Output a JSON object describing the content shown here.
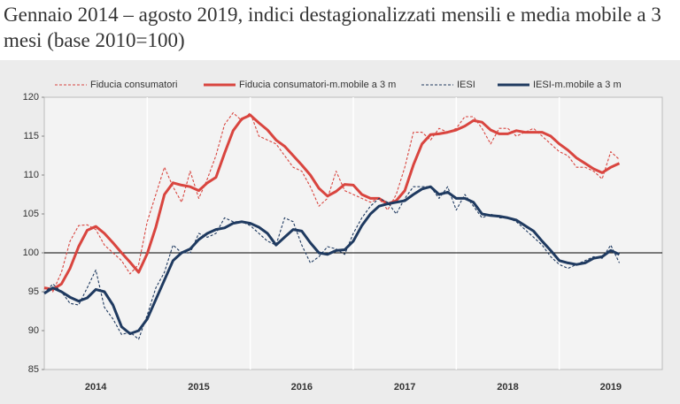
{
  "chart_data": {
    "type": "line",
    "title": "Gennaio 2014 – agosto 2019, indici destagionalizzati mensili e media mobile a 3 mesi (base 2010=100)",
    "categories": [
      null,
      null,
      null,
      null,
      null,
      null,
      "2014",
      null,
      null,
      null,
      null,
      null,
      null,
      null,
      null,
      null,
      null,
      null,
      "2015",
      null,
      null,
      null,
      null,
      null,
      null,
      null,
      null,
      null,
      null,
      null,
      "2016",
      null,
      null,
      null,
      null,
      null,
      null,
      null,
      null,
      null,
      null,
      null,
      "2017",
      null,
      null,
      null,
      null,
      null,
      null,
      null,
      null,
      null,
      null,
      null,
      "2018",
      null,
      null,
      null,
      null,
      null,
      null,
      null,
      null,
      null,
      null,
      null,
      "2019",
      null
    ],
    "series": [
      {
        "name": "Fiducia consumatori",
        "color": "#d9453f",
        "dashed": true,
        "values": [
          95.5,
          95.0,
          97.5,
          101.5,
          103.5,
          103.6,
          103.0,
          101.0,
          100.0,
          99.0,
          97.3,
          98.5,
          104.0,
          107.5,
          111.0,
          108.5,
          106.5,
          110.5,
          107.0,
          109.5,
          112.5,
          116.5,
          118.0,
          117.0,
          118.0,
          115.0,
          114.5,
          114.0,
          112.5,
          111.0,
          110.5,
          108.5,
          106.0,
          107.0,
          110.5,
          108.0,
          107.5,
          107.0,
          106.5,
          107.0,
          105.5,
          107.5,
          111.0,
          115.5,
          115.5,
          114.5,
          116.0,
          115.5,
          116.0,
          117.5,
          117.5,
          116.0,
          114.0,
          116.0,
          116.0,
          115.0,
          115.5,
          116.0,
          115.0,
          114.0,
          113.0,
          112.5,
          111.0,
          111.0,
          110.5,
          109.5,
          113.0,
          112.0
        ]
      },
      {
        "name": "Fiducia consumatori-m.mobile a 3 m",
        "color": "#d9453f",
        "dashed": false,
        "values": [
          95.5,
          95.3,
          96.0,
          98.0,
          100.8,
          102.9,
          103.4,
          102.5,
          101.3,
          100.0,
          98.8,
          97.5,
          99.9,
          103.3,
          107.5,
          109.0,
          108.7,
          108.5,
          108.0,
          109.0,
          109.7,
          112.8,
          115.7,
          117.2,
          117.7,
          116.7,
          115.8,
          114.5,
          113.7,
          112.5,
          111.3,
          110.0,
          108.3,
          107.3,
          107.9,
          108.8,
          108.7,
          107.5,
          107.0,
          107.0,
          106.3,
          106.7,
          108.0,
          111.3,
          114.0,
          115.2,
          115.3,
          115.5,
          115.8,
          116.3,
          117.0,
          116.8,
          115.8,
          115.3,
          115.3,
          115.7,
          115.5,
          115.5,
          115.5,
          115.0,
          114.0,
          113.2,
          112.2,
          111.5,
          110.8,
          110.3,
          111.0,
          111.5
        ]
      },
      {
        "name": "IESI",
        "color": "#1f3a60",
        "dashed": true,
        "values": [
          94.8,
          96.0,
          95.0,
          93.5,
          93.3,
          95.5,
          97.8,
          93.0,
          91.5,
          89.5,
          89.8,
          88.9,
          92.0,
          95.5,
          97.5,
          101.0,
          100.0,
          100.0,
          102.5,
          102.0,
          102.5,
          104.5,
          104.0,
          104.0,
          103.5,
          102.5,
          101.5,
          101.0,
          104.5,
          104.0,
          101.0,
          98.7,
          99.5,
          100.8,
          100.5,
          99.8,
          102.5,
          104.5,
          106.0,
          107.0,
          106.5,
          105.0,
          107.0,
          108.5,
          108.5,
          108.5,
          107.0,
          108.5,
          105.5,
          107.5,
          106.0,
          104.5,
          105.0,
          104.5,
          104.5,
          104.0,
          103.0,
          102.0,
          101.0,
          99.5,
          98.5,
          98.0,
          98.5,
          99.0,
          99.5,
          99.3,
          101.0,
          98.7
        ]
      },
      {
        "name": "IESI-m.mobile a 3 m",
        "color": "#1f3a60",
        "dashed": false,
        "values": [
          94.8,
          95.5,
          95.0,
          94.3,
          93.8,
          94.2,
          95.3,
          95.0,
          93.3,
          90.5,
          89.6,
          90.0,
          91.5,
          94.0,
          96.5,
          99.0,
          100.0,
          100.5,
          101.7,
          102.5,
          103.0,
          103.2,
          103.8,
          104.0,
          103.8,
          103.3,
          102.5,
          101.0,
          102.0,
          103.0,
          102.8,
          101.3,
          100.0,
          99.8,
          100.3,
          100.4,
          101.5,
          103.5,
          105.0,
          106.0,
          106.3,
          106.5,
          106.7,
          107.5,
          108.2,
          108.5,
          107.5,
          107.8,
          107.0,
          107.0,
          106.5,
          105.0,
          104.8,
          104.7,
          104.5,
          104.2,
          103.5,
          102.8,
          101.5,
          100.3,
          99.0,
          98.7,
          98.5,
          98.7,
          99.3,
          99.5,
          100.3,
          99.8
        ]
      }
    ],
    "ylim": [
      85,
      120
    ],
    "yticks": [
      85,
      90,
      95,
      100,
      105,
      110,
      115,
      120
    ],
    "reference_line": 100,
    "year_months": 12
  }
}
